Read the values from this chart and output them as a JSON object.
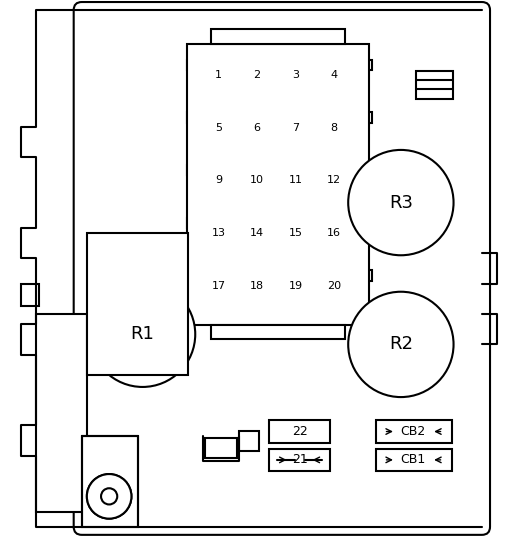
{
  "bg_color": "#ffffff",
  "line_color": "#000000",
  "fig_width": 5.08,
  "fig_height": 5.47,
  "dpi": 100,
  "fuse_rows": [
    [
      "1",
      "2",
      "3",
      "4"
    ],
    [
      "5",
      "6",
      "7",
      "8"
    ],
    [
      "9",
      "10",
      "11",
      "12"
    ],
    [
      "13",
      "14",
      "15",
      "16"
    ],
    [
      "17",
      "18",
      "19",
      "20"
    ]
  ],
  "relay_labels": [
    "R1",
    "R2",
    "R3"
  ],
  "cb_labels": [
    "CB1",
    "CB2"
  ],
  "small_fuse_labels": [
    "21",
    "22"
  ]
}
